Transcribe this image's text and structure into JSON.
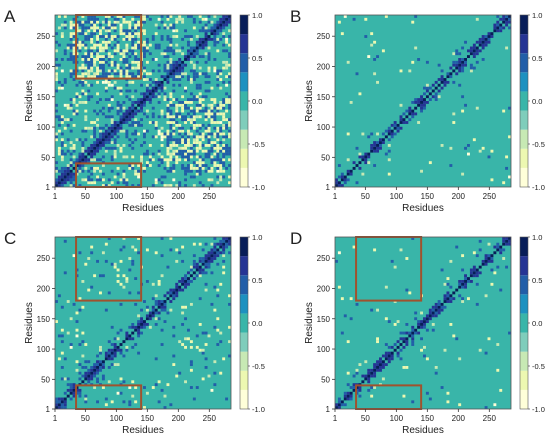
{
  "chart_data": [
    {
      "type": "heatmap",
      "panel_label": "A",
      "xlabel": "Residues",
      "ylabel": "Residues",
      "xticks": [
        1,
        50,
        100,
        150,
        200,
        250
      ],
      "yticks": [
        1,
        50,
        100,
        150,
        200,
        250
      ],
      "xlim": [
        1,
        285
      ],
      "ylim": [
        1,
        285
      ],
      "colorbar": {
        "ticks": [
          1.0,
          0.5,
          0.0,
          -0.5,
          -1.0
        ],
        "tick_labels": [
          "1.0",
          "0.5",
          "0.0",
          "-0.5",
          "-1.0"
        ],
        "range": [
          -1.0,
          1.0
        ]
      },
      "pattern": {
        "density": 1.0,
        "off_diag": 0.85,
        "seed": 11
      },
      "highlight_boxes": [
        {
          "x": [
            35,
            140
          ],
          "y": [
            180,
            285
          ]
        },
        {
          "x": [
            35,
            140
          ],
          "y": [
            1,
            40
          ]
        }
      ]
    },
    {
      "type": "heatmap",
      "panel_label": "B",
      "xlabel": "Residues",
      "ylabel": "Residues",
      "xticks": [
        1,
        50,
        100,
        150,
        200,
        250
      ],
      "yticks": [
        1,
        50,
        100,
        150,
        200,
        250
      ],
      "xlim": [
        1,
        285
      ],
      "ylim": [
        1,
        285
      ],
      "colorbar": {
        "ticks": [
          1.0,
          0.5,
          0.0,
          -0.5,
          -1.0
        ],
        "tick_labels": [
          "1.0",
          "0.5",
          "0.0",
          "-0.5",
          "-1.0"
        ],
        "range": [
          -1.0,
          1.0
        ]
      },
      "pattern": {
        "density": 0.25,
        "off_diag": 0.05,
        "seed": 23
      },
      "highlight_boxes": []
    },
    {
      "type": "heatmap",
      "panel_label": "C",
      "xlabel": "Residues",
      "ylabel": "Residues",
      "xticks": [
        1,
        50,
        100,
        150,
        200,
        250
      ],
      "yticks": [
        1,
        50,
        100,
        150,
        200,
        250
      ],
      "xlim": [
        1,
        285
      ],
      "ylim": [
        1,
        285
      ],
      "colorbar": {
        "ticks": [
          1.0,
          0.5,
          0.0,
          -0.5,
          -1.0
        ],
        "tick_labels": [
          "1.0",
          "0.5",
          "0.0",
          "-0.5",
          "-1.0"
        ],
        "range": [
          -1.0,
          1.0
        ]
      },
      "pattern": {
        "density": 0.45,
        "off_diag": 0.2,
        "seed": 37
      },
      "highlight_boxes": [
        {
          "x": [
            35,
            140
          ],
          "y": [
            180,
            285
          ]
        },
        {
          "x": [
            35,
            140
          ],
          "y": [
            1,
            40
          ]
        }
      ]
    },
    {
      "type": "heatmap",
      "panel_label": "D",
      "xlabel": "Residues",
      "ylabel": "Residues",
      "xticks": [
        1,
        50,
        100,
        150,
        200,
        250
      ],
      "yticks": [
        1,
        50,
        100,
        150,
        200,
        250
      ],
      "xlim": [
        1,
        285
      ],
      "ylim": [
        1,
        285
      ],
      "colorbar": {
        "ticks": [
          1.0,
          0.5,
          0.0,
          -0.5,
          -1.0
        ],
        "tick_labels": [
          "1.0",
          "0.5",
          "0.0",
          "-0.5",
          "-1.0"
        ],
        "range": [
          -1.0,
          1.0
        ]
      },
      "pattern": {
        "density": 0.3,
        "off_diag": 0.07,
        "seed": 51
      },
      "highlight_boxes": [
        {
          "x": [
            35,
            140
          ],
          "y": [
            180,
            285
          ]
        },
        {
          "x": [
            35,
            140
          ],
          "y": [
            1,
            40
          ]
        }
      ]
    }
  ],
  "colors": {
    "background": "#39b5a9",
    "levels": [
      "#ffffd9",
      "#edf8b1",
      "#c7e9b4",
      "#7fcdbb",
      "#39b5a9",
      "#1d91c0",
      "#225ea8",
      "#253494",
      "#081d58"
    ],
    "highlight_box": "#a0522d"
  }
}
